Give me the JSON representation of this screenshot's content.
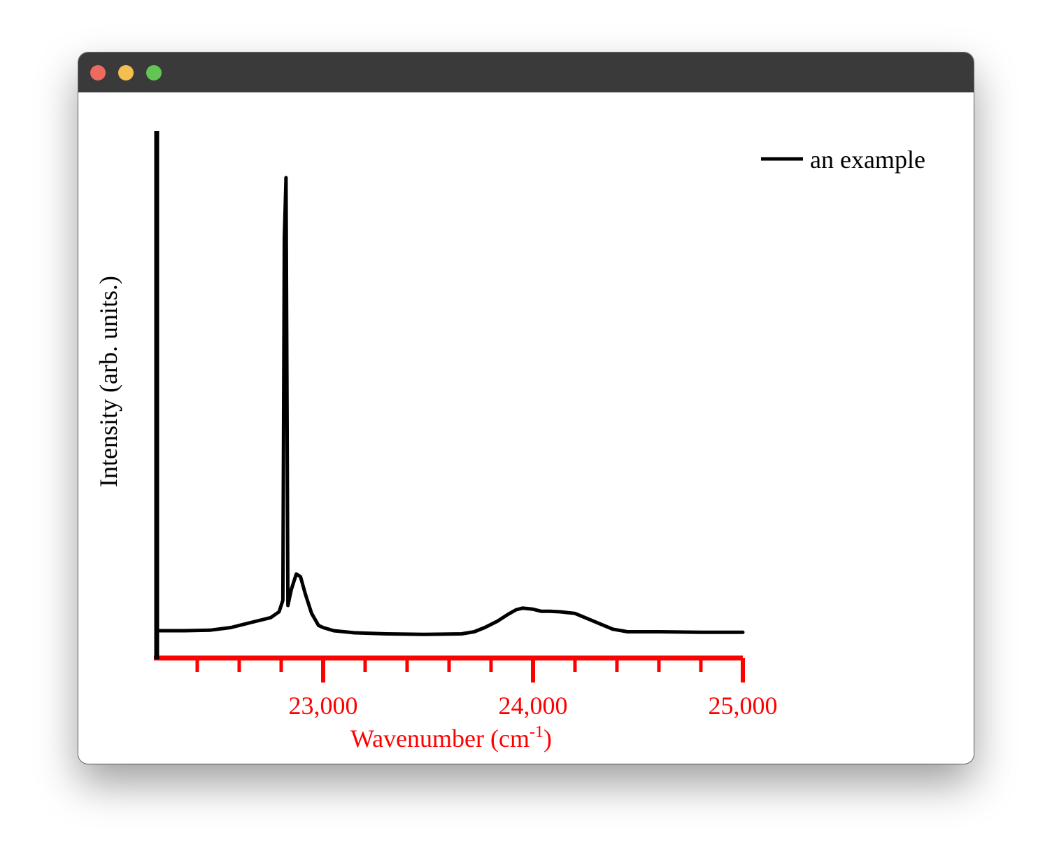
{
  "window": {
    "controls": [
      "close",
      "minimize",
      "maximize"
    ],
    "colors": {
      "close": "#ed6a5e",
      "minimize": "#f5bf4f",
      "maximize": "#62c554",
      "titlebar": "#3a3a3a"
    }
  },
  "chart_data": {
    "type": "line",
    "title": "",
    "xlabel": "Wavenumber (cm",
    "xlabel_sup": "-1",
    "xlabel_tail": ")",
    "ylabel": "Intensity (arb. units.)",
    "xlim": [
      22200,
      25000
    ],
    "ylim": [
      0,
      1.0
    ],
    "x_tick_labels": [
      "23,000",
      "24,000",
      "25,000"
    ],
    "x_major_ticks": [
      23000,
      24000,
      25000
    ],
    "x_minor_ticks": [
      22400,
      22600,
      22800,
      23200,
      23400,
      23600,
      23800,
      24200,
      24400,
      24600,
      24800
    ],
    "grid": false,
    "legend_position": "top-right",
    "colors": {
      "x_axis": "#ff0000",
      "y_axis": "#000000",
      "series": "#000000"
    },
    "series": [
      {
        "name": "an example",
        "x": [
          22210,
          22340,
          22460,
          22560,
          22680,
          22750,
          22790,
          22808,
          22815,
          22823,
          22832,
          22848,
          22872,
          22892,
          22915,
          22945,
          22978,
          23000,
          23050,
          23150,
          23300,
          23480,
          23660,
          23720,
          23770,
          23830,
          23880,
          23920,
          23950,
          24000,
          24040,
          24080,
          24130,
          24200,
          24260,
          24320,
          24380,
          24450,
          24600,
          24800,
          25000
        ],
        "y": [
          0.052,
          0.052,
          0.053,
          0.058,
          0.07,
          0.077,
          0.088,
          0.11,
          0.8,
          0.915,
          0.1,
          0.13,
          0.16,
          0.155,
          0.122,
          0.085,
          0.062,
          0.058,
          0.052,
          0.048,
          0.046,
          0.045,
          0.046,
          0.05,
          0.058,
          0.07,
          0.083,
          0.092,
          0.095,
          0.093,
          0.089,
          0.089,
          0.088,
          0.085,
          0.075,
          0.065,
          0.055,
          0.05,
          0.05,
          0.049,
          0.049
        ]
      }
    ]
  }
}
